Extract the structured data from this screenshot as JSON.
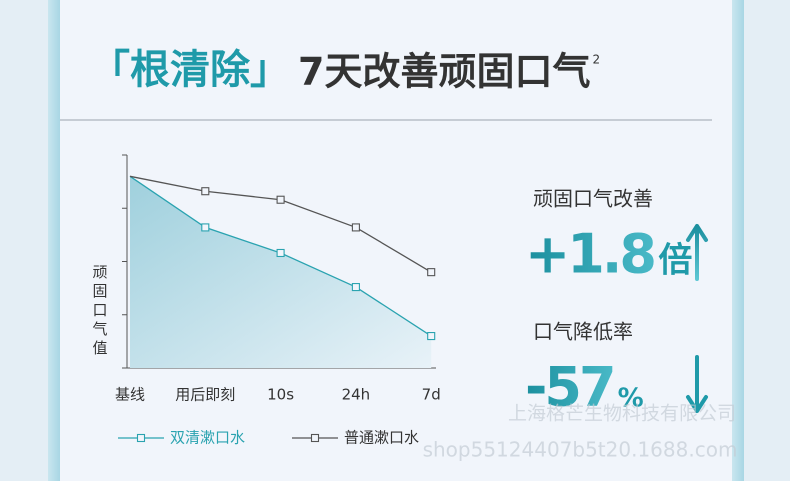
{
  "title": {
    "highlight": "「根清除」",
    "main": "7天改善顽固口气",
    "sup": "2"
  },
  "chart_data": {
    "type": "line",
    "y_label": "顽固口气值",
    "categories": [
      "基线",
      "用后即刻",
      "10s",
      "24h",
      "7d"
    ],
    "series": [
      {
        "name": "双清漱口水",
        "color": "#2aa3b0",
        "fill": true,
        "values": [
          90,
          66,
          54,
          38,
          15
        ]
      },
      {
        "name": "普通漱口水",
        "color": "#555555",
        "fill": false,
        "values": [
          90,
          83,
          79,
          66,
          45
        ]
      }
    ],
    "ylim": [
      0,
      100
    ],
    "yticks": [
      0,
      25,
      50,
      75,
      100
    ],
    "ytick_labels": false
  },
  "stats": [
    {
      "label": "顽固口气改善",
      "value": "+1.8",
      "unit": "倍",
      "direction": "up"
    },
    {
      "label": "口气降低率",
      "value": "-57",
      "unit": "%",
      "direction": "down"
    }
  ],
  "watermark": [
    "上海格芒生物科技有限公司",
    "shop55124407b5t20.1688.com"
  ]
}
